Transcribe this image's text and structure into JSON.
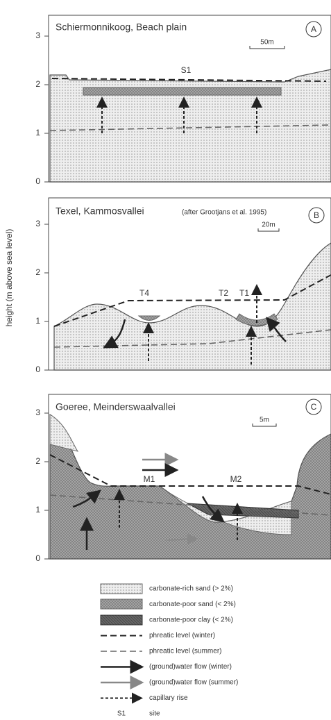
{
  "y_axis_label": "height (m above sea level)",
  "panels": [
    {
      "title": "Schiermonnikoog, Beach plain",
      "letter": "A",
      "scale": "50m",
      "yticks": [
        0,
        1,
        2,
        3
      ],
      "sites": [
        "S1"
      ]
    },
    {
      "title": "Texel, Kammosvallei",
      "note": "(after Grootjans et al. 1995)",
      "letter": "B",
      "scale": "20m",
      "yticks": [
        0,
        1,
        2,
        3
      ],
      "sites": [
        "T4",
        "T2",
        "T1"
      ]
    },
    {
      "title": "Goeree, Meinderswaalvallei",
      "letter": "C",
      "scale": "5m",
      "yticks": [
        0,
        1,
        2,
        3
      ],
      "sites": [
        "M1",
        "M2"
      ]
    }
  ],
  "legend": [
    {
      "label": "carbonate-rich sand (> 2%)"
    },
    {
      "label": "carbonate-poor sand (< 2%)"
    },
    {
      "label": "carbonate-poor clay (< 2%)"
    },
    {
      "label": "phreatic level (winter)"
    },
    {
      "label": "phreatic level (summer)"
    },
    {
      "label": "(ground)water flow (winter)"
    },
    {
      "label": "(ground)water flow (summer)"
    },
    {
      "label": "capillary rise"
    },
    {
      "key": "S1",
      "label": "site"
    }
  ]
}
